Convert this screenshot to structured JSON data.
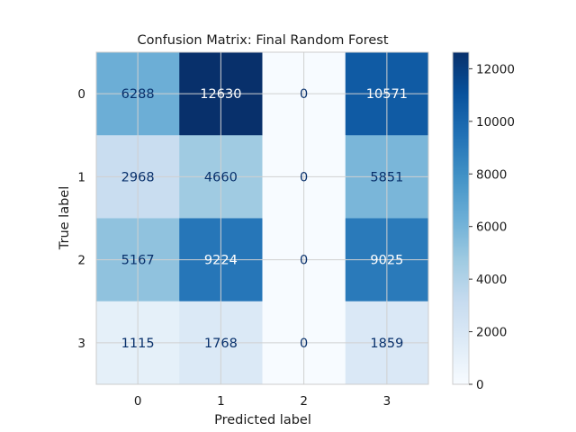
{
  "chart_data": {
    "type": "heatmap",
    "title": "Confusion Matrix: Final Random Forest",
    "xlabel": "Predicted label",
    "ylabel": "True label",
    "x_categories": [
      "0",
      "1",
      "2",
      "3"
    ],
    "y_categories": [
      "0",
      "1",
      "2",
      "3"
    ],
    "values": [
      [
        6288,
        12630,
        0,
        10571
      ],
      [
        2968,
        4660,
        0,
        5851
      ],
      [
        5167,
        9224,
        0,
        9025
      ],
      [
        1115,
        1768,
        0,
        1859
      ]
    ],
    "colormap": "Blues",
    "colorbar": {
      "min": 0,
      "max": 12630,
      "ticks": [
        0,
        2000,
        4000,
        6000,
        8000,
        10000,
        12000
      ],
      "tick_labels": [
        "0",
        "2000",
        "4000",
        "6000",
        "8000",
        "10000",
        "12000"
      ]
    },
    "grid": true
  }
}
